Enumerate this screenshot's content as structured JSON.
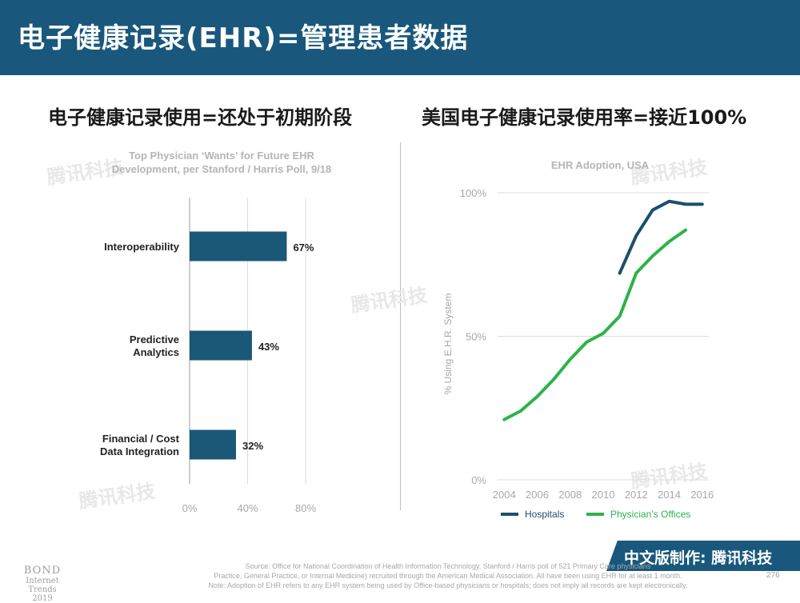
{
  "header": {
    "title": "电子健康记录(EHR)=管理患者数据",
    "left_subtitle": "电子健康记录使用=还处于初期阶段",
    "right_subtitle": "美国电子健康记录使用率=接近100%"
  },
  "chart_data": [
    {
      "type": "bar",
      "orientation": "horizontal",
      "title": "Top Physician ‘Wants’ for Future EHR Development, per Stanford / Harris Poll, 9/18",
      "title_lines": [
        "Top Physician ‘Wants’ for Future EHR",
        "Development, per Stanford / Harris Poll, 9/18"
      ],
      "categories": [
        [
          "Interoperability"
        ],
        [
          "Predictive",
          "Analytics"
        ],
        [
          "Financial / Cost",
          "Data Integration"
        ]
      ],
      "values": [
        67,
        43,
        32
      ],
      "value_labels": [
        "67%",
        "43%",
        "32%"
      ],
      "xlim": [
        0,
        80
      ],
      "xticks": [
        0,
        40,
        80
      ],
      "xtick_labels": [
        "0%",
        "40%",
        "80%"
      ],
      "grid": "vertical",
      "bar_color": "#1b5878"
    },
    {
      "type": "line",
      "title": "EHR Adoption, USA",
      "ylabel": "% Using E.H.R. System",
      "xlim": [
        2003.6,
        2016.4
      ],
      "ylim": [
        0,
        100
      ],
      "xticks": [
        2004,
        2006,
        2008,
        2010,
        2012,
        2014,
        2016
      ],
      "xtick_labels": [
        "2004",
        "2006",
        "2008",
        "2010",
        "2012",
        "2014",
        "2016"
      ],
      "yticks": [
        0,
        50,
        100
      ],
      "ytick_labels": [
        "0%",
        "50%",
        "100%"
      ],
      "legend_position": "bottom",
      "series": [
        {
          "name": "Hospitals",
          "color": "#1b4f6e",
          "x": [
            2011,
            2012,
            2013,
            2014,
            2015,
            2016
          ],
          "y": [
            72,
            85,
            94,
            97,
            96,
            96
          ]
        },
        {
          "name": "Physician’s Offices",
          "color": "#2db34a",
          "x": [
            2004,
            2005,
            2006,
            2007,
            2008,
            2009,
            2010,
            2011,
            2012,
            2013,
            2014,
            2015
          ],
          "y": [
            21,
            24,
            29,
            35,
            42,
            48,
            51,
            57,
            72,
            78,
            83,
            87
          ]
        }
      ]
    }
  ],
  "watermark": "腾讯科技",
  "footer": {
    "credit": "中文版制作:  腾讯科技",
    "bond_line1": "BOND",
    "bond_line2": "Internet Trends",
    "bond_line3": "2019",
    "source_line1": "Source: Office for National Coordination of Health Information Technology. Stanford / Harris poll of 521 Primary Care physicians",
    "source_line2": "Practice, General Practice, or Internal Medicine) recruited through the American Medical Association.  All have been using EHR for at least 1 month.",
    "source_line3": "Note: Adoption of EHR refers to any EHR system being used by Office-based physicians or hospitals; does not imply all records are kept electronically.",
    "page_number": "276"
  }
}
